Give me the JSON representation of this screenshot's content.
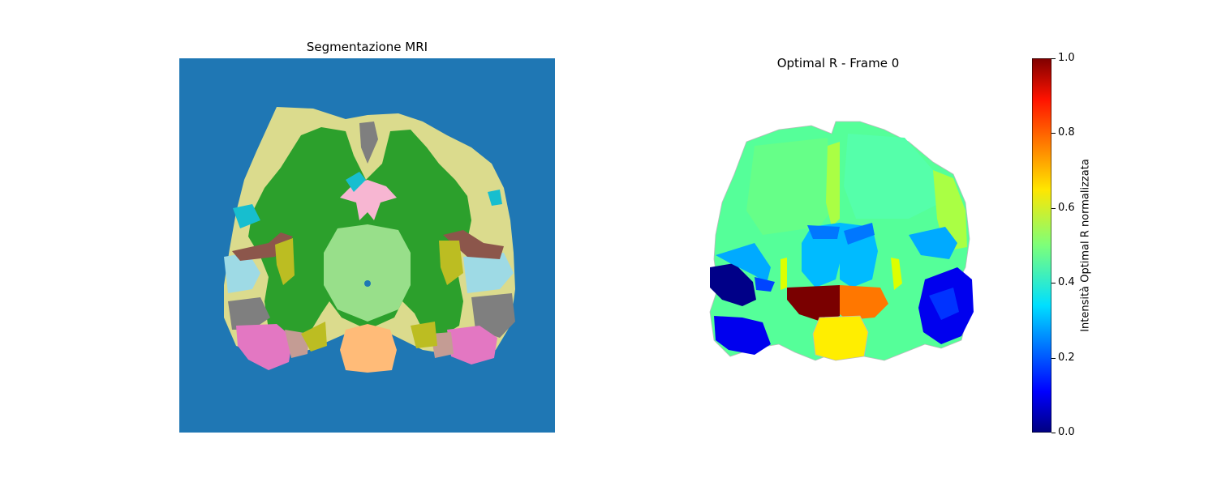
{
  "figure": {
    "left_title": "Segmentazione MRI",
    "right_title": "Optimal R - Frame 0",
    "colorbar": {
      "label": "Intensità Optimal R normalizzata",
      "colormap": "jet",
      "ticks": [
        "0.0",
        "0.2",
        "0.4",
        "0.6",
        "0.8",
        "1.0"
      ]
    },
    "colors": {
      "seg_background": "#1f77b4",
      "cortex": "#dbdb8d",
      "white_matter": "#2ca02c",
      "thalamus": "#98df8a",
      "brainstem": "#ffbb78",
      "ventricle": "#f7b6d2",
      "temporal_gray": "#7f7f7f",
      "temporal_pink": "#e377c2",
      "brown_region": "#8c564b",
      "olive_region": "#bcbd22",
      "cyan_region": "#17becf",
      "lightblue_region": "#9edae5",
      "rosy_region": "#c49c94"
    }
  }
}
